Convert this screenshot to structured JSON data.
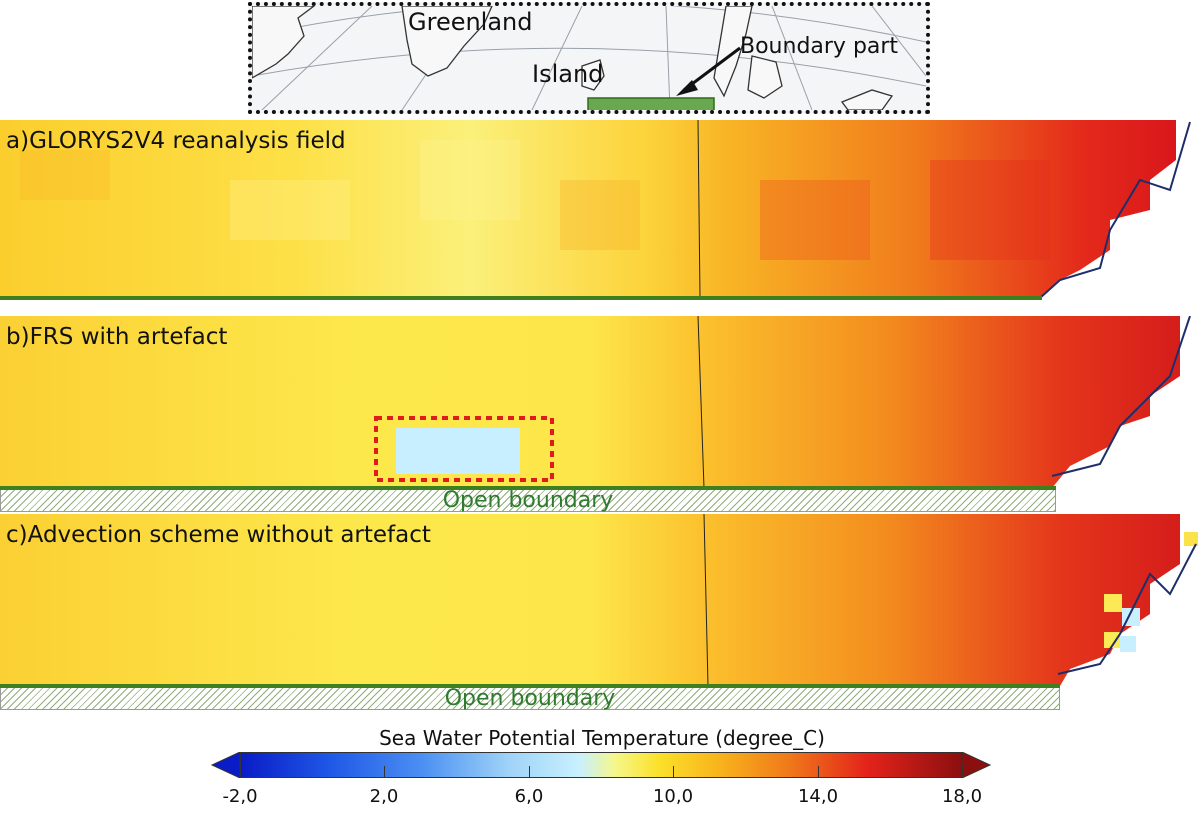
{
  "inset": {
    "greenland": "Greenland",
    "island": "Island",
    "boundary_part": "Boundary part"
  },
  "panels": [
    {
      "title": "a)GLORYS2V4 reanalysis field",
      "open_boundary": ""
    },
    {
      "title": "b)FRS with artefact",
      "open_boundary": "Open boundary"
    },
    {
      "title": "c)Advection scheme without artefact",
      "open_boundary": "Open boundary"
    }
  ],
  "colorbar": {
    "title": "Sea Water Potential Temperature (degree_C)",
    "min": -2.0,
    "max": 18.0,
    "ticks": [
      "-2,0",
      "2,0",
      "6,0",
      "10,0",
      "14,0",
      "18,0"
    ],
    "tick_values": [
      -2,
      2,
      6,
      10,
      14,
      18
    ],
    "colors": {
      "cold": "#0a1cc6",
      "cool": "#9ed2f7",
      "mild": "#fbe12a",
      "warm": "#f07a1a",
      "hot": "#8c0f0f"
    }
  }
}
